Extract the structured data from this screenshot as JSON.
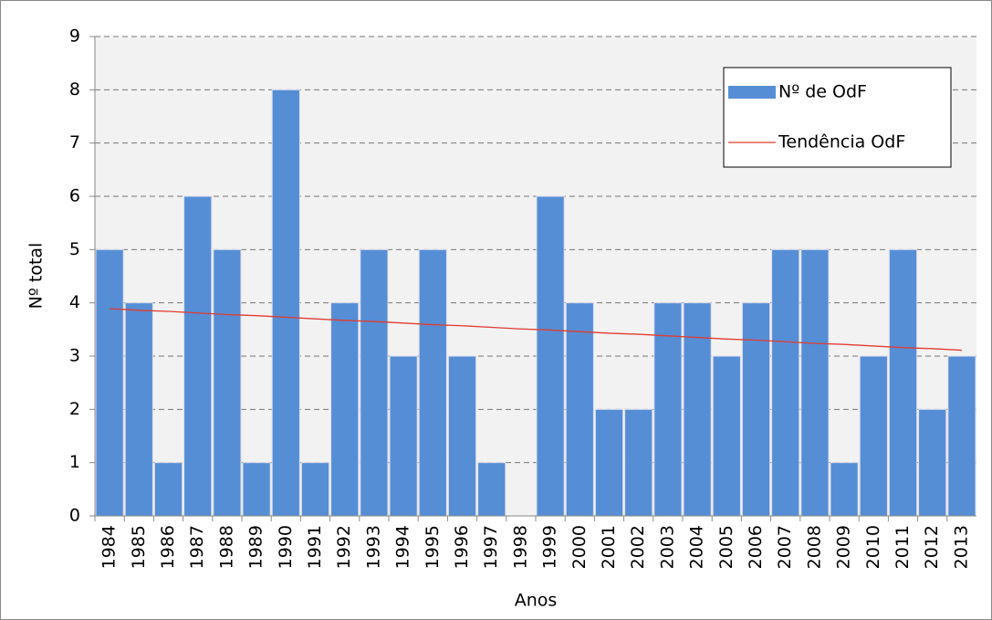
{
  "chart_data": {
    "type": "bar",
    "y_label": "Nº total",
    "x_label": "Anos",
    "categories": [
      "1984",
      "1985",
      "1986",
      "1987",
      "1988",
      "1989",
      "1990",
      "1991",
      "1992",
      "1993",
      "1994",
      "1995",
      "1996",
      "1997",
      "1998",
      "1999",
      "2000",
      "2001",
      "2002",
      "2003",
      "2004",
      "2005",
      "2006",
      "2007",
      "2008",
      "2009",
      "2010",
      "2011",
      "2012",
      "2013"
    ],
    "series": [
      {
        "name": "Nº de OdF",
        "color": "#558ed5",
        "type": "bar",
        "values": [
          5,
          4,
          1,
          6,
          5,
          1,
          8,
          1,
          4,
          5,
          3,
          5,
          3,
          1,
          0,
          6,
          4,
          2,
          2,
          4,
          4,
          3,
          4,
          5,
          5,
          1,
          3,
          5,
          2,
          3
        ]
      },
      {
        "name": "Tendência OdF",
        "color": "#e03c31",
        "type": "line",
        "values": [
          3.89,
          3.86,
          3.84,
          3.81,
          3.78,
          3.76,
          3.73,
          3.7,
          3.67,
          3.65,
          3.62,
          3.59,
          3.57,
          3.54,
          3.51,
          3.49,
          3.46,
          3.43,
          3.41,
          3.38,
          3.35,
          3.32,
          3.3,
          3.27,
          3.24,
          3.22,
          3.19,
          3.16,
          3.14,
          3.11
        ]
      }
    ],
    "ylim": [
      0,
      9
    ],
    "yticks": [
      0,
      1,
      2,
      3,
      4,
      5,
      6,
      7,
      8,
      9
    ],
    "grid": true,
    "legend": "upper right"
  }
}
